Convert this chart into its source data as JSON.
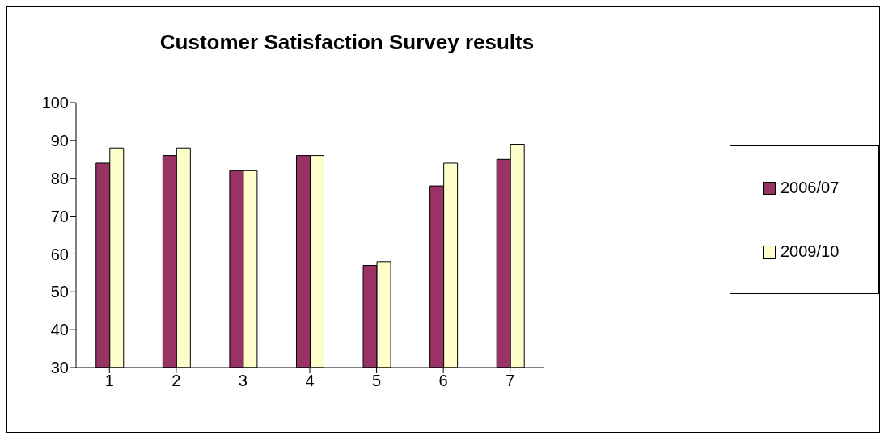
{
  "chart_data": {
    "type": "bar",
    "title": "Customer Satisfaction Survey results",
    "categories": [
      "1",
      "2",
      "3",
      "4",
      "5",
      "6",
      "7"
    ],
    "series": [
      {
        "name": "2006/07",
        "color": "#993366",
        "values": [
          84,
          86,
          82,
          86,
          57,
          78,
          85
        ]
      },
      {
        "name": "2009/10",
        "color": "#ffffcc",
        "values": [
          88,
          88,
          82,
          86,
          58,
          84,
          89
        ]
      }
    ],
    "ylim": [
      30,
      100
    ],
    "yticks": [
      30,
      40,
      50,
      60,
      70,
      80,
      90,
      100
    ],
    "grid": false,
    "legend": "right"
  }
}
